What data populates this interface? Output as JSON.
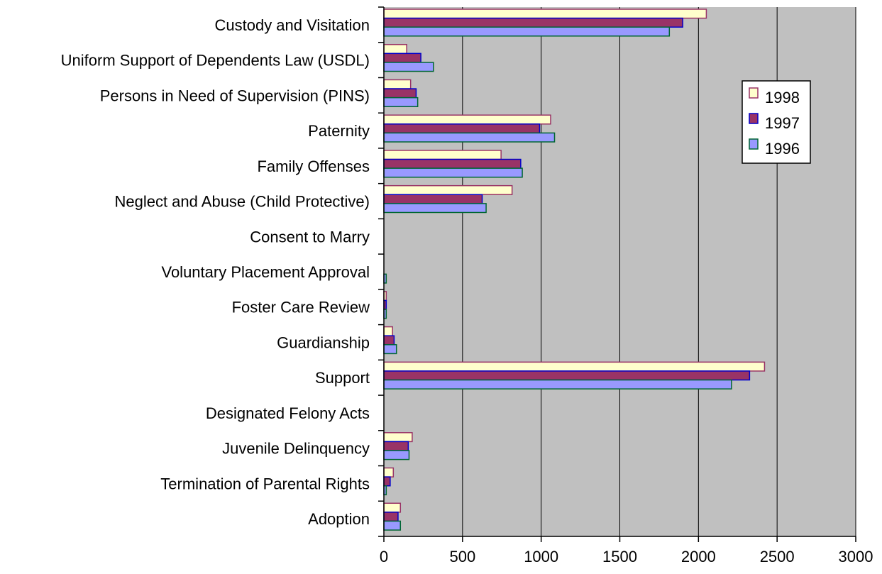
{
  "chart_data": {
    "type": "bar",
    "orientation": "horizontal",
    "categories": [
      "Custody and Visitation",
      "Uniform Support of Dependents Law (USDL)",
      "Persons in Need of Supervision (PINS)",
      "Paternity",
      "Family Offenses",
      "Neglect and Abuse (Child Protective)",
      "Consent to Marry",
      "Voluntary Placement Approval",
      "Foster Care Review",
      "Guardianship",
      "Support",
      "Designated Felony Acts",
      "Juvenile Delinquency",
      "Termination of Parental Rights",
      "Adoption"
    ],
    "series": [
      {
        "name": "1998",
        "color": "#FFFFCC",
        "border": "#993366",
        "values": [
          2050,
          145,
          170,
          1060,
          745,
          815,
          0,
          0,
          15,
          55,
          2420,
          0,
          180,
          60,
          105
        ]
      },
      {
        "name": "1997",
        "color": "#993366",
        "border": "#0000CC",
        "values": [
          1900,
          235,
          205,
          990,
          870,
          625,
          0,
          0,
          15,
          65,
          2325,
          0,
          155,
          40,
          90
        ]
      },
      {
        "name": "1996",
        "color": "#9999FF",
        "border": "#006633",
        "values": [
          1815,
          315,
          215,
          1085,
          880,
          650,
          0,
          15,
          15,
          80,
          2210,
          0,
          160,
          15,
          105
        ]
      }
    ],
    "xlim": [
      0,
      3000
    ],
    "xticks": [
      "0",
      "500",
      "1000",
      "1500",
      "2000",
      "2500",
      "3000"
    ],
    "title": "",
    "xlabel": "",
    "ylabel": "",
    "grid": "vertical",
    "legend": "right",
    "plot_background": "#C0C0C0"
  }
}
